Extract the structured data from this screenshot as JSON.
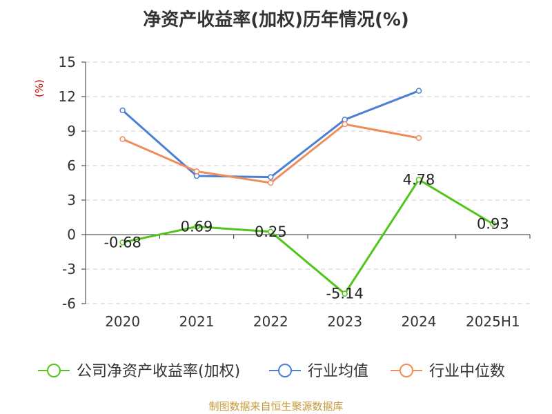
{
  "chart_data": {
    "type": "line",
    "title": "净资产收益率(加权)历年情况(%)",
    "ylabel": "(%)",
    "categories": [
      "2020",
      "2021",
      "2022",
      "2023",
      "2024",
      "2025H1"
    ],
    "y_ticks": [
      "15",
      "12",
      "9",
      "6",
      "3",
      "0",
      "-3",
      "-6"
    ],
    "ylim": [
      -6,
      15
    ],
    "grid": true,
    "legend_position": "bottom",
    "series": [
      {
        "name": "公司净资产收益率(加权)",
        "color": "#52c41a",
        "values": [
          -0.68,
          0.69,
          0.25,
          -5.14,
          4.78,
          0.93
        ],
        "data_labels": [
          "-0.68",
          "0.69",
          "0.25",
          "-5.14",
          "4.78",
          "0.93"
        ]
      },
      {
        "name": "行业均值",
        "color": "#4a7fd4",
        "values": [
          10.8,
          5.1,
          5.0,
          10.0,
          12.5,
          null
        ]
      },
      {
        "name": "行业中位数",
        "color": "#f08c5a",
        "values": [
          8.3,
          5.5,
          4.5,
          9.6,
          8.4,
          null
        ]
      }
    ]
  },
  "source": "制图数据来自恒生聚源数据库"
}
